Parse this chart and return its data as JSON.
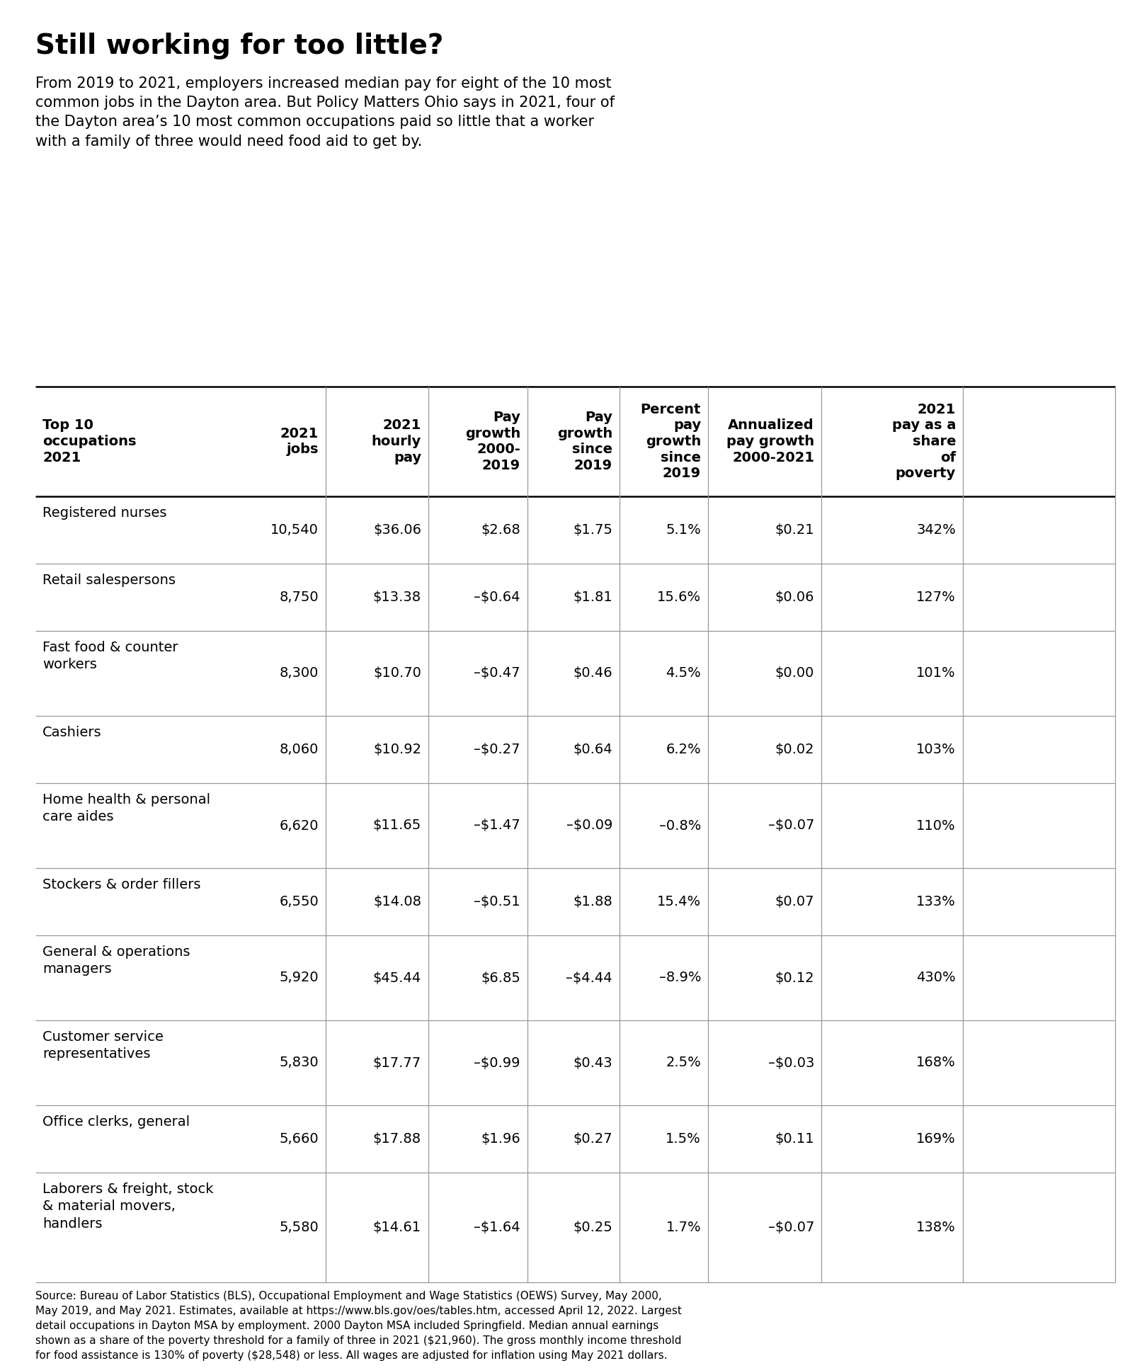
{
  "title": "Still working for too little?",
  "subtitle": "From 2019 to 2021, employers increased median pay for eight of the 10 most\ncommon jobs in the Dayton area. But Policy Matters Ohio says in 2021, four of\nthe Dayton area’s 10 most common occupations paid so little that a worker\nwith a family of three would need food aid to get by.",
  "col_headers": [
    [
      "Top 10\noccupations\n2021",
      "left"
    ],
    [
      "2021\njobs",
      "right"
    ],
    [
      "2021\nhourly\npay",
      "right"
    ],
    [
      "Pay\ngrowth\n2000-\n2019",
      "right"
    ],
    [
      "Pay\ngrowth\nsince\n2019",
      "right"
    ],
    [
      "Percent\npay\ngrowth\nsince\n2019",
      "right"
    ],
    [
      "Annualized\npay growth\n2000-2021",
      "right"
    ],
    [
      "2021\npay as a\nshare\nof\npoverty",
      "right"
    ]
  ],
  "rows": [
    [
      "Registered nurses",
      "10,540",
      "$36.06",
      "$2.68",
      "$1.75",
      "5.1%",
      "$0.21",
      "342%"
    ],
    [
      "Retail salespersons",
      "8,750",
      "$13.38",
      "–$0.64",
      "$1.81",
      "15.6%",
      "$0.06",
      "127%"
    ],
    [
      "Fast food & counter\nworkers",
      "8,300",
      "$10.70",
      "–$0.47",
      "$0.46",
      "4.5%",
      "$0.00",
      "101%"
    ],
    [
      "Cashiers",
      "8,060",
      "$10.92",
      "–$0.27",
      "$0.64",
      "6.2%",
      "$0.02",
      "103%"
    ],
    [
      "Home health & personal\ncare aides",
      "6,620",
      "$11.65",
      "–$1.47",
      "–$0.09",
      "–0.8%",
      "–$0.07",
      "110%"
    ],
    [
      "Stockers & order fillers",
      "6,550",
      "$14.08",
      "–$0.51",
      "$1.88",
      "15.4%",
      "$0.07",
      "133%"
    ],
    [
      "General & operations\nmanagers",
      "5,920",
      "$45.44",
      "$6.85",
      "–$4.44",
      "–8.9%",
      "$0.12",
      "430%"
    ],
    [
      "Customer service\nrepresentatives",
      "5,830",
      "$17.77",
      "–$0.99",
      "$0.43",
      "2.5%",
      "–$0.03",
      "168%"
    ],
    [
      "Office clerks, general",
      "5,660",
      "$17.88",
      "$1.96",
      "$0.27",
      "1.5%",
      "$0.11",
      "169%"
    ],
    [
      "Laborers & freight, stock\n& material movers,\nhandlers",
      "5,580",
      "$14.61",
      "–$1.64",
      "$0.25",
      "1.7%",
      "–$0.07",
      "138%"
    ]
  ],
  "source_text": "Source: Bureau of Labor Statistics (BLS), Occupational Employment and Wage Statistics (OEWS) Survey, May 2000,\nMay 2019, and May 2021. Estimates, available at https://www.bls.gov/oes/tables.htm, accessed April 12, 2022. Largest\ndetail occupations in Dayton MSA by employment. 2000 Dayton MSA included Springfield. Median annual earnings\nshown as a share of the poverty threshold for a family of three in 2021 ($21,960). The gross monthly income threshold\nfor food assistance is 130% of poverty ($28,548) or less. All wages are adjusted for inflation using May 2021 dollars.",
  "bg_color": "#ffffff",
  "text_color": "#000000",
  "line_color": "#999999",
  "header_line_color": "#000000",
  "title_fontsize": 28,
  "subtitle_fontsize": 15,
  "header_fontsize": 14,
  "data_fontsize": 14,
  "source_fontsize": 11
}
